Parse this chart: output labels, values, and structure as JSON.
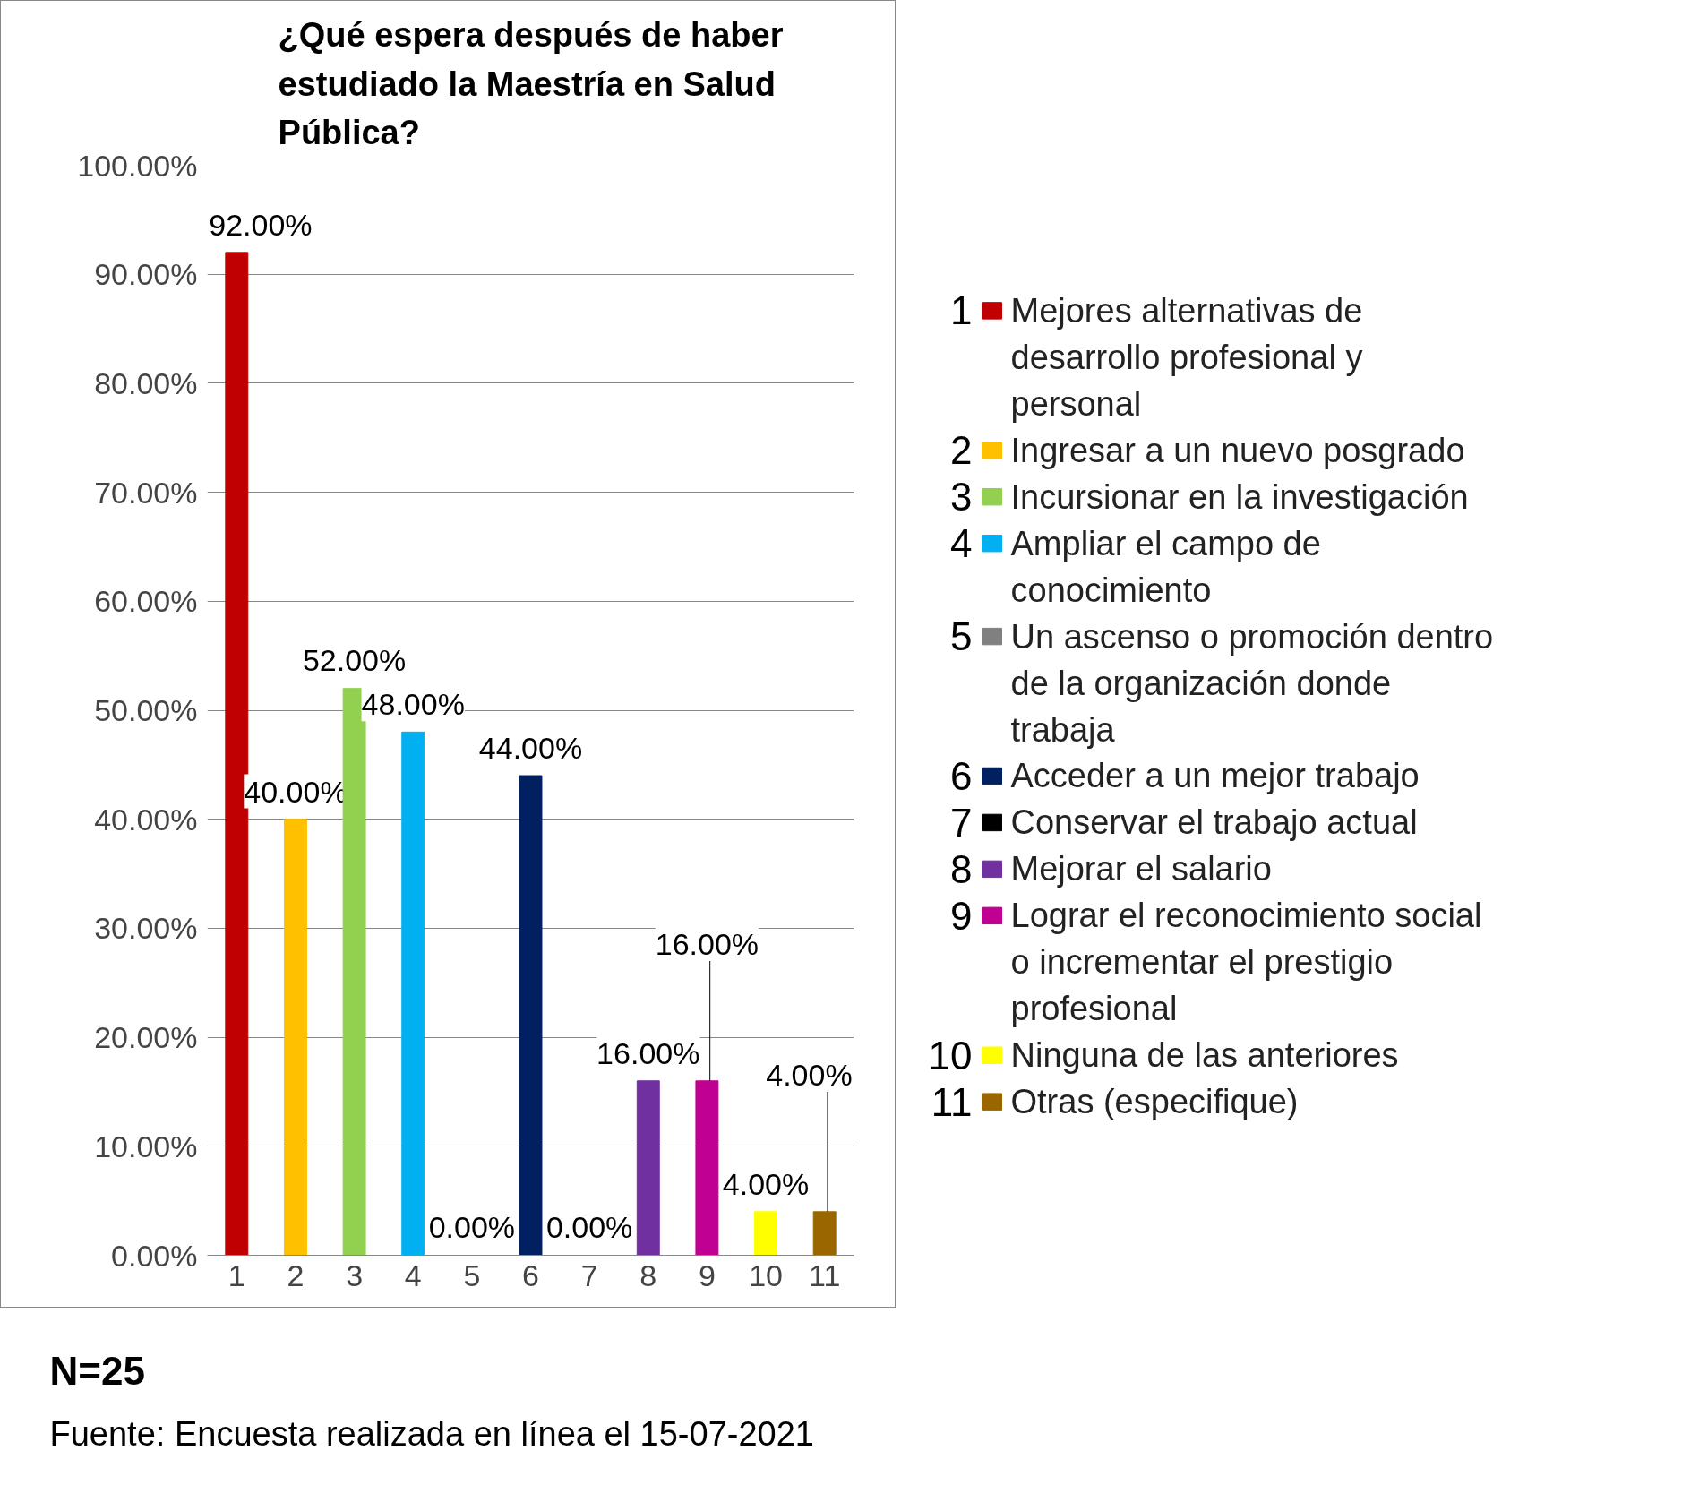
{
  "chart_data": {
    "type": "bar",
    "title": "¿Qué espera después de haber estudiado la Maestría en Salud Pública?",
    "categories": [
      "1",
      "2",
      "3",
      "4",
      "5",
      "6",
      "7",
      "8",
      "9",
      "10",
      "11"
    ],
    "series": [
      {
        "name": "Mejores alternativas de desarrollo profesional y personal",
        "color": "#c00000",
        "values": [
          92,
          null,
          null,
          null,
          null,
          null,
          null,
          null,
          null,
          null,
          null
        ],
        "value_labels": [
          "92.00%",
          null,
          null,
          null,
          null,
          null,
          null,
          null,
          null,
          null,
          null
        ]
      },
      {
        "name": "Ingresar a un nuevo posgrado",
        "color": "#ffc000",
        "values": [
          null,
          40,
          null,
          null,
          null,
          null,
          null,
          null,
          null,
          null,
          null
        ],
        "value_labels": [
          null,
          "40.00%",
          null,
          null,
          null,
          null,
          null,
          null,
          null,
          null,
          null
        ]
      },
      {
        "name": "Incursionar en la investigación",
        "color": "#92d050",
        "values": [
          null,
          null,
          52,
          null,
          null,
          null,
          null,
          null,
          null,
          null,
          null
        ],
        "value_labels": [
          null,
          null,
          "52.00%",
          null,
          null,
          null,
          null,
          null,
          null,
          null,
          null
        ]
      },
      {
        "name": "Ampliar el campo de conocimiento",
        "color": "#00b0f0",
        "values": [
          null,
          null,
          null,
          48,
          null,
          null,
          null,
          null,
          null,
          null,
          null
        ],
        "value_labels": [
          null,
          null,
          null,
          "48.00%",
          null,
          null,
          null,
          null,
          null,
          null,
          null
        ]
      },
      {
        "name": "Un ascenso o promoción dentro de la organización donde trabaja",
        "color": "#808080",
        "values": [
          null,
          null,
          null,
          null,
          0,
          null,
          null,
          null,
          null,
          null,
          null
        ],
        "value_labels": [
          null,
          null,
          null,
          null,
          "0.00%",
          null,
          null,
          null,
          null,
          null,
          null
        ]
      },
      {
        "name": "Acceder a un mejor trabajo",
        "color": "#002060",
        "values": [
          null,
          null,
          null,
          null,
          null,
          44,
          null,
          null,
          null,
          null,
          null
        ],
        "value_labels": [
          null,
          null,
          null,
          null,
          null,
          "44.00%",
          null,
          null,
          null,
          null,
          null
        ]
      },
      {
        "name": "Conservar el trabajo actual",
        "color": "#000000",
        "values": [
          null,
          null,
          null,
          null,
          null,
          null,
          0,
          null,
          null,
          null,
          null
        ],
        "value_labels": [
          null,
          null,
          null,
          null,
          null,
          null,
          "0.00%",
          null,
          null,
          null,
          null
        ]
      },
      {
        "name": "Mejorar el salario",
        "color": "#7030a0",
        "values": [
          null,
          null,
          null,
          null,
          null,
          null,
          null,
          16,
          null,
          null,
          null
        ],
        "value_labels": [
          null,
          null,
          null,
          null,
          null,
          null,
          null,
          "16.00%",
          null,
          null,
          null
        ]
      },
      {
        "name": "Lograr el reconocimiento social o incrementar el prestigio profesional",
        "color": "#c00090",
        "values": [
          null,
          null,
          null,
          null,
          null,
          null,
          null,
          null,
          16,
          null,
          null
        ],
        "value_labels": [
          null,
          null,
          null,
          null,
          null,
          null,
          null,
          null,
          "16.00%",
          null,
          null
        ]
      },
      {
        "name": "Ninguna de las anteriores",
        "color": "#ffff00",
        "values": [
          null,
          null,
          null,
          null,
          null,
          null,
          null,
          null,
          null,
          4,
          null
        ],
        "value_labels": [
          null,
          null,
          null,
          null,
          null,
          null,
          null,
          null,
          null,
          "4.00%",
          null
        ]
      },
      {
        "name": "Otras (especifique)",
        "color": "#996600",
        "values": [
          null,
          null,
          null,
          null,
          null,
          null,
          null,
          null,
          null,
          null,
          4
        ],
        "value_labels": [
          null,
          null,
          null,
          null,
          null,
          null,
          null,
          null,
          null,
          null,
          "4.00%"
        ]
      }
    ],
    "ylim": [
      0,
      100
    ],
    "yticks": [
      {
        "value": 0,
        "label": "0.00%"
      },
      {
        "value": 10,
        "label": "10.00%"
      },
      {
        "value": 20,
        "label": "20.00%"
      },
      {
        "value": 30,
        "label": "30.00%"
      },
      {
        "value": 40,
        "label": "40.00%"
      },
      {
        "value": 50,
        "label": "50.00%"
      },
      {
        "value": 60,
        "label": "60.00%"
      },
      {
        "value": 70,
        "label": "70.00%"
      },
      {
        "value": 80,
        "label": "80.00%"
      },
      {
        "value": 90,
        "label": "90.00%"
      },
      {
        "value": 100,
        "label": "100.00%"
      }
    ],
    "grid": "y",
    "legend": "right",
    "annotations": [
      "N=25",
      "Fuente: Encuesta realizada en línea el 15-07-2021"
    ]
  }
}
